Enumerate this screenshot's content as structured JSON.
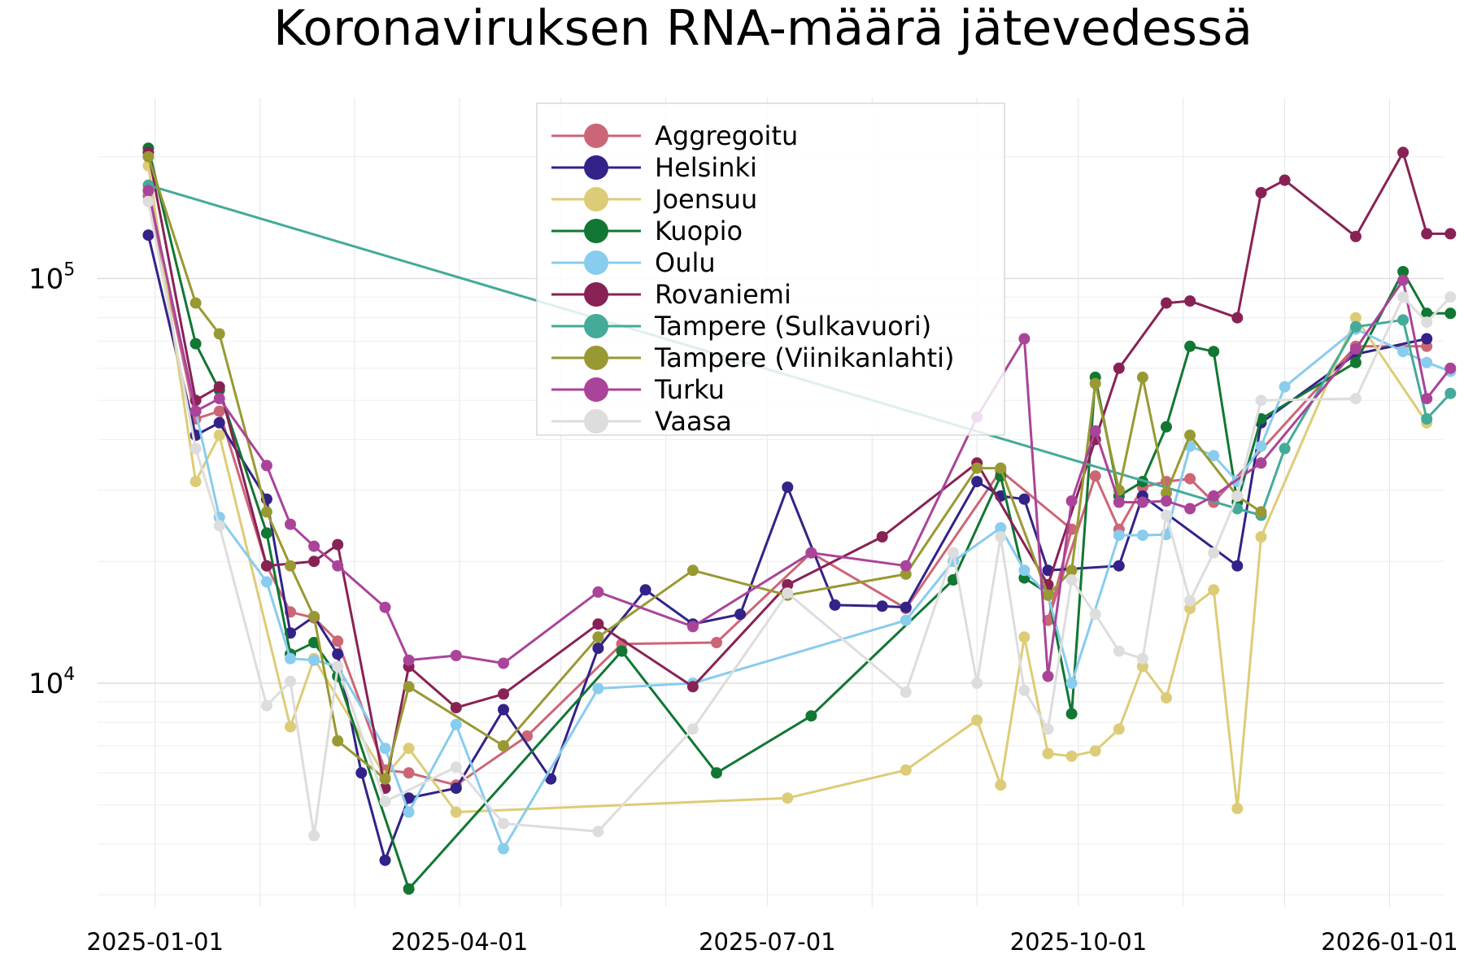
{
  "chart_data": {
    "type": "line",
    "title": "Koronaviruksen RNA-määrä jätevedessä",
    "xlabel": "",
    "ylabel": "",
    "yscale": "log",
    "ylim": [
      2800,
      280000
    ],
    "xlim": [
      "2024-12-15",
      "2026-01-17"
    ],
    "grid": true,
    "legend_position": "top-center",
    "x_ticks": [
      "2025-01-01",
      "2025-04-01",
      "2025-07-01",
      "2025-10-01",
      "2026-01-01"
    ],
    "y_ticks": [
      {
        "base": "10",
        "exp": "4",
        "value": 10000
      },
      {
        "base": "10",
        "exp": "5",
        "value": 100000
      }
    ],
    "series": [
      {
        "name": "Aggregoitu",
        "color": "#CC6677",
        "points": [
          [
            "2024-12-30",
            160000
          ],
          [
            "2025-01-13",
            45000
          ],
          [
            "2025-01-20",
            47000
          ],
          [
            "2025-02-03",
            19500
          ],
          [
            "2025-02-10",
            15000
          ],
          [
            "2025-02-17",
            14500
          ],
          [
            "2025-02-24",
            12700
          ],
          [
            "2025-03-10",
            6100
          ],
          [
            "2025-03-17",
            6000
          ],
          [
            "2025-03-31",
            5600
          ],
          [
            "2025-04-21",
            7400
          ],
          [
            "2025-05-19",
            12500
          ],
          [
            "2025-06-16",
            12600
          ],
          [
            "2025-07-14",
            21000
          ],
          [
            "2025-08-11",
            15300
          ],
          [
            "2025-09-08",
            33500
          ],
          [
            "2025-09-29",
            24000
          ],
          [
            "2025-09-22",
            14300
          ],
          [
            "2025-10-06",
            32500
          ],
          [
            "2025-10-13",
            24000
          ],
          [
            "2025-10-20",
            30500
          ],
          [
            "2025-10-27",
            31500
          ],
          [
            "2025-11-03",
            32000
          ],
          [
            "2025-11-10",
            28000
          ],
          [
            "2025-12-22",
            68000
          ],
          [
            "2026-01-12",
            68000
          ]
        ]
      },
      {
        "name": "Helsinki",
        "color": "#332288",
        "points": [
          [
            "2024-12-30",
            128000
          ],
          [
            "2025-01-13",
            41000
          ],
          [
            "2025-01-20",
            44000
          ],
          [
            "2025-02-03",
            28500
          ],
          [
            "2025-02-10",
            13300
          ],
          [
            "2025-02-17",
            14600
          ],
          [
            "2025-02-24",
            11800
          ],
          [
            "2025-03-03",
            6000
          ],
          [
            "2025-03-10",
            3650
          ],
          [
            "2025-03-17",
            5200
          ],
          [
            "2025-03-31",
            5500
          ],
          [
            "2025-04-14",
            8600
          ],
          [
            "2025-04-28",
            5800
          ],
          [
            "2025-05-12",
            12200
          ],
          [
            "2025-05-26",
            17000
          ],
          [
            "2025-06-09",
            14000
          ],
          [
            "2025-06-23",
            14800
          ],
          [
            "2025-07-07",
            30500
          ],
          [
            "2025-07-21",
            15600
          ],
          [
            "2025-08-04",
            15500
          ],
          [
            "2025-08-11",
            15400
          ],
          [
            "2025-09-01",
            31500
          ],
          [
            "2025-09-08",
            29000
          ],
          [
            "2025-09-15",
            28500
          ],
          [
            "2025-09-22",
            19000
          ],
          [
            "2025-10-13",
            19500
          ],
          [
            "2025-10-20",
            29000
          ],
          [
            "2025-11-17",
            19500
          ],
          [
            "2025-11-24",
            44000
          ],
          [
            "2025-12-22",
            65000
          ],
          [
            "2026-01-12",
            71000
          ]
        ]
      },
      {
        "name": "Joensuu",
        "color": "#DDCC77",
        "points": [
          [
            "2024-12-30",
            190000
          ],
          [
            "2025-01-13",
            31500
          ],
          [
            "2025-01-20",
            41000
          ],
          [
            "2025-02-10",
            7800
          ],
          [
            "2025-02-17",
            11500
          ],
          [
            "2025-03-10",
            5900
          ],
          [
            "2025-03-17",
            6900
          ],
          [
            "2025-03-31",
            4800
          ],
          [
            "2025-07-07",
            5200
          ],
          [
            "2025-08-11",
            6100
          ],
          [
            "2025-09-01",
            8100
          ],
          [
            "2025-09-08",
            5600
          ],
          [
            "2025-09-15",
            13000
          ],
          [
            "2025-09-22",
            6700
          ],
          [
            "2025-09-29",
            6600
          ],
          [
            "2025-10-06",
            6800
          ],
          [
            "2025-10-13",
            7700
          ],
          [
            "2025-10-20",
            11000
          ],
          [
            "2025-10-27",
            9200
          ],
          [
            "2025-11-03",
            15300
          ],
          [
            "2025-11-10",
            17000
          ],
          [
            "2025-11-17",
            4900
          ],
          [
            "2025-11-24",
            23000
          ],
          [
            "2025-12-22",
            80000
          ],
          [
            "2026-01-12",
            44000
          ]
        ]
      },
      {
        "name": "Kuopio",
        "color": "#117733",
        "points": [
          [
            "2024-12-30",
            210000
          ],
          [
            "2025-01-13",
            69000
          ],
          [
            "2025-01-20",
            53000
          ],
          [
            "2025-02-03",
            23500
          ],
          [
            "2025-02-10",
            11800
          ],
          [
            "2025-02-17",
            12600
          ],
          [
            "2025-02-24",
            10400
          ],
          [
            "2025-03-17",
            3100
          ],
          [
            "2025-05-19",
            12000
          ],
          [
            "2025-06-16",
            6000
          ],
          [
            "2025-07-14",
            8300
          ],
          [
            "2025-08-25",
            18000
          ],
          [
            "2025-09-08",
            32500
          ],
          [
            "2025-09-15",
            18200
          ],
          [
            "2025-09-22",
            16700
          ],
          [
            "2025-09-29",
            8400
          ],
          [
            "2025-10-06",
            57000
          ],
          [
            "2025-10-13",
            29000
          ],
          [
            "2025-10-20",
            31500
          ],
          [
            "2025-10-27",
            43000
          ],
          [
            "2025-11-03",
            68000
          ],
          [
            "2025-11-10",
            66000
          ],
          [
            "2025-11-17",
            28000
          ],
          [
            "2025-11-24",
            45000
          ],
          [
            "2025-12-22",
            62000
          ],
          [
            "2026-01-05",
            104000
          ],
          [
            "2026-01-12",
            82000
          ],
          [
            "2026-01-19",
            82000
          ]
        ]
      },
      {
        "name": "Oulu",
        "color": "#88CCEE",
        "points": [
          [
            "2024-12-30",
            165000
          ],
          [
            "2025-01-13",
            47000
          ],
          [
            "2025-01-20",
            25700
          ],
          [
            "2025-02-03",
            17800
          ],
          [
            "2025-02-10",
            11500
          ],
          [
            "2025-02-17",
            11400
          ],
          [
            "2025-02-24",
            11000
          ],
          [
            "2025-03-10",
            6900
          ],
          [
            "2025-03-17",
            4800
          ],
          [
            "2025-03-31",
            7900
          ],
          [
            "2025-04-14",
            3900
          ],
          [
            "2025-05-12",
            9700
          ],
          [
            "2025-06-09",
            10000
          ],
          [
            "2025-08-11",
            14300
          ],
          [
            "2025-08-25",
            20000
          ],
          [
            "2025-09-08",
            24200
          ],
          [
            "2025-09-15",
            19000
          ],
          [
            "2025-09-22",
            16500
          ],
          [
            "2025-09-29",
            10000
          ],
          [
            "2025-10-13",
            23200
          ],
          [
            "2025-10-20",
            23200
          ],
          [
            "2025-10-27",
            23300
          ],
          [
            "2025-11-03",
            38500
          ],
          [
            "2025-11-10",
            36500
          ],
          [
            "2025-11-17",
            31500
          ],
          [
            "2025-11-24",
            38500
          ],
          [
            "2025-12-01",
            54000
          ],
          [
            "2025-12-22",
            75000
          ],
          [
            "2026-01-05",
            66000
          ],
          [
            "2026-01-12",
            62000
          ],
          [
            "2026-01-19",
            59000
          ]
        ]
      },
      {
        "name": "Rovaniemi",
        "color": "#882255",
        "points": [
          [
            "2024-12-30",
            205000
          ],
          [
            "2025-01-13",
            50000
          ],
          [
            "2025-01-20",
            54000
          ],
          [
            "2025-02-03",
            19500
          ],
          [
            "2025-02-17",
            20000
          ],
          [
            "2025-02-24",
            22000
          ],
          [
            "2025-03-10",
            5500
          ],
          [
            "2025-03-17",
            11000
          ],
          [
            "2025-03-31",
            8700
          ],
          [
            "2025-04-14",
            9400
          ],
          [
            "2025-05-12",
            14000
          ],
          [
            "2025-06-09",
            9800
          ],
          [
            "2025-07-07",
            17500
          ],
          [
            "2025-08-04",
            23000
          ],
          [
            "2025-09-01",
            35000
          ],
          [
            "2025-09-22",
            17500
          ],
          [
            "2025-10-06",
            40000
          ],
          [
            "2025-10-13",
            60000
          ],
          [
            "2025-10-27",
            87000
          ],
          [
            "2025-11-03",
            88000
          ],
          [
            "2025-11-17",
            80000
          ],
          [
            "2025-11-24",
            163000
          ],
          [
            "2025-12-01",
            175000
          ],
          [
            "2025-12-22",
            127000
          ],
          [
            "2026-01-05",
            205000
          ],
          [
            "2026-01-12",
            129000
          ],
          [
            "2026-01-19",
            129000
          ]
        ]
      },
      {
        "name": "Tampere (Sulkavuori)",
        "color": "#44AA99",
        "points": [
          [
            "2024-12-30",
            170000
          ],
          [
            "2025-11-17",
            27000
          ],
          [
            "2025-11-24",
            26000
          ],
          [
            "2025-12-01",
            38000
          ],
          [
            "2025-12-22",
            76000
          ],
          [
            "2026-01-05",
            79000
          ],
          [
            "2026-01-12",
            45000
          ],
          [
            "2026-01-19",
            52000
          ]
        ]
      },
      {
        "name": "Tampere (Viinikanlahti)",
        "color": "#999933",
        "points": [
          [
            "2024-12-30",
            200000
          ],
          [
            "2025-01-13",
            87000
          ],
          [
            "2025-01-20",
            73000
          ],
          [
            "2025-02-03",
            26500
          ],
          [
            "2025-02-10",
            19500
          ],
          [
            "2025-02-17",
            14600
          ],
          [
            "2025-02-24",
            7200
          ],
          [
            "2025-03-10",
            5800
          ],
          [
            "2025-03-17",
            9800
          ],
          [
            "2025-04-14",
            7000
          ],
          [
            "2025-05-12",
            13000
          ],
          [
            "2025-06-09",
            19000
          ],
          [
            "2025-07-07",
            16500
          ],
          [
            "2025-08-11",
            18600
          ],
          [
            "2025-09-01",
            34000
          ],
          [
            "2025-09-08",
            34000
          ],
          [
            "2025-09-22",
            16500
          ],
          [
            "2025-09-29",
            19000
          ],
          [
            "2025-10-06",
            55000
          ],
          [
            "2025-10-13",
            30000
          ],
          [
            "2025-10-20",
            57000
          ],
          [
            "2025-10-27",
            29500
          ],
          [
            "2025-11-03",
            41000
          ],
          [
            "2025-11-17",
            29000
          ],
          [
            "2025-11-24",
            26500
          ]
        ]
      },
      {
        "name": "Turku",
        "color": "#AA4499",
        "points": [
          [
            "2024-12-30",
            165000
          ],
          [
            "2025-01-13",
            47000
          ],
          [
            "2025-01-20",
            50500
          ],
          [
            "2025-02-03",
            34500
          ],
          [
            "2025-02-10",
            24700
          ],
          [
            "2025-02-17",
            21800
          ],
          [
            "2025-02-24",
            19500
          ],
          [
            "2025-03-10",
            15400
          ],
          [
            "2025-03-17",
            11400
          ],
          [
            "2025-03-31",
            11700
          ],
          [
            "2025-04-14",
            11200
          ],
          [
            "2025-05-12",
            16800
          ],
          [
            "2025-06-09",
            13800
          ],
          [
            "2025-07-14",
            21000
          ],
          [
            "2025-08-11",
            19500
          ],
          [
            "2025-09-01",
            45500
          ],
          [
            "2025-09-15",
            71000
          ],
          [
            "2025-09-22",
            10400
          ],
          [
            "2025-09-29",
            28200
          ],
          [
            "2025-10-06",
            42000
          ],
          [
            "2025-10-13",
            28000
          ],
          [
            "2025-10-20",
            28000
          ],
          [
            "2025-10-27",
            28200
          ],
          [
            "2025-11-03",
            27000
          ],
          [
            "2025-11-10",
            29000
          ],
          [
            "2025-11-24",
            35000
          ],
          [
            "2025-12-22",
            67000
          ],
          [
            "2026-01-05",
            99000
          ],
          [
            "2026-01-12",
            50500
          ],
          [
            "2026-01-19",
            60000
          ]
        ]
      },
      {
        "name": "Vaasa",
        "color": "#DDDDDD",
        "points": [
          [
            "2024-12-30",
            155000
          ],
          [
            "2025-01-13",
            38000
          ],
          [
            "2025-01-20",
            24500
          ],
          [
            "2025-02-03",
            8800
          ],
          [
            "2025-02-10",
            10100
          ],
          [
            "2025-02-17",
            4200
          ],
          [
            "2025-02-24",
            11000
          ],
          [
            "2025-03-10",
            5100
          ],
          [
            "2025-03-31",
            6200
          ],
          [
            "2025-04-14",
            4500
          ],
          [
            "2025-05-12",
            4300
          ],
          [
            "2025-06-09",
            7700
          ],
          [
            "2025-07-07",
            16700
          ],
          [
            "2025-08-11",
            9500
          ],
          [
            "2025-08-25",
            21000
          ],
          [
            "2025-09-01",
            10000
          ],
          [
            "2025-09-08",
            23000
          ],
          [
            "2025-09-15",
            9600
          ],
          [
            "2025-09-22",
            7700
          ],
          [
            "2025-09-29",
            18000
          ],
          [
            "2025-10-06",
            14800
          ],
          [
            "2025-10-13",
            12000
          ],
          [
            "2025-10-20",
            11500
          ],
          [
            "2025-10-27",
            26000
          ],
          [
            "2025-11-03",
            16000
          ],
          [
            "2025-11-10",
            21000
          ],
          [
            "2025-11-17",
            29000
          ],
          [
            "2025-11-24",
            50000
          ],
          [
            "2025-12-22",
            50500
          ],
          [
            "2026-01-05",
            90000
          ],
          [
            "2026-01-12",
            78000
          ],
          [
            "2026-01-19",
            90000
          ]
        ]
      }
    ]
  }
}
